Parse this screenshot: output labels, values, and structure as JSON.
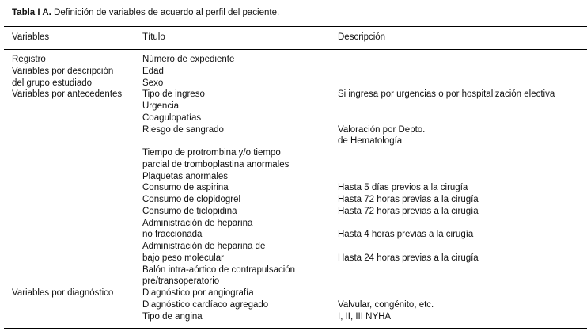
{
  "caption": {
    "label": "Tabla I A.",
    "text": " Definición de variables de acuerdo al perfil del paciente."
  },
  "headers": [
    "Variables",
    "Título",
    "Descripción"
  ],
  "rows": [
    [
      "Registro",
      "Número de expediente",
      ""
    ],
    [
      "Variables por descripción",
      "Edad",
      ""
    ],
    [
      "del grupo estudiado",
      "Sexo",
      ""
    ],
    [
      "Variables por antecedentes",
      "Tipo de ingreso",
      "Si ingresa por urgencias o por hospitalización electiva"
    ],
    [
      "",
      "Urgencia",
      ""
    ],
    [
      "",
      "Coagulopatías",
      ""
    ],
    [
      "",
      "Riesgo de sangrado",
      "Valoración por Depto."
    ],
    [
      "",
      "",
      "de Hematología"
    ],
    [
      "",
      "Tiempo de protrombina y/o tiempo",
      ""
    ],
    [
      "",
      "parcial de tromboplastina anormales",
      ""
    ],
    [
      "",
      "Plaquetas anormales",
      ""
    ],
    [
      "",
      "Consumo de aspirina",
      "Hasta 5 días previos a la cirugía"
    ],
    [
      "",
      "Consumo de clopidogrel",
      "Hasta 72 horas previas a la cirugía"
    ],
    [
      "",
      "Consumo de ticlopidina",
      "Hasta 72 horas previas a la cirugía"
    ],
    [
      "",
      "Administración de heparina",
      ""
    ],
    [
      "",
      "no fraccionada",
      "Hasta 4 horas previas a la cirugía"
    ],
    [
      "",
      "Administración de heparina de",
      ""
    ],
    [
      "",
      "bajo peso molecular",
      "Hasta 24 horas previas a la cirugía"
    ],
    [
      "",
      "Balón intra-aórtico de contrapulsación",
      ""
    ],
    [
      "",
      "pre/transoperatorio",
      ""
    ],
    [
      "Variables por diagnóstico",
      "Diagnóstico por angiografía",
      ""
    ],
    [
      "",
      "Diagnóstico cardíaco agregado",
      "Valvular, congénito, etc."
    ],
    [
      "",
      "Tipo de angina",
      "I, II, III NYHA"
    ]
  ]
}
